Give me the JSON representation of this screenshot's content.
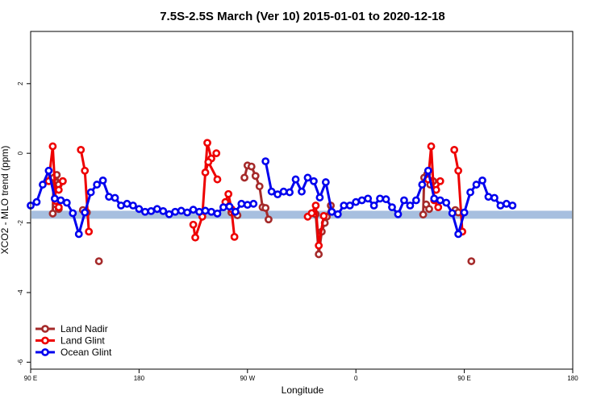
{
  "chart_data": {
    "type": "line",
    "title": "7.5S-2.5S March (Ver 10)   2015-01-01 to 2020-12-18",
    "xlabel": "Longitude",
    "ylabel": "XCO2 - MLO trend (ppm)",
    "xlim": [
      -90,
      180
    ],
    "ylim": [
      -6.2,
      3.5
    ],
    "x_ticks": [
      {
        "value": -90,
        "label": "90 E"
      },
      {
        "value": -36,
        "label": "180"
      },
      {
        "value": 18,
        "label": "90 W"
      },
      {
        "value": 72,
        "label": "0"
      },
      {
        "value": 126,
        "label": "90 E"
      },
      {
        "value": 180,
        "label": "180"
      }
    ],
    "y_ticks": [
      {
        "value": -6,
        "label": "-6"
      },
      {
        "value": -4,
        "label": "-4"
      },
      {
        "value": -2,
        "label": "-2"
      },
      {
        "value": 0,
        "label": "0"
      },
      {
        "value": 2,
        "label": "2"
      }
    ],
    "grid": false,
    "legend_position": "bottom-left",
    "reference_band": {
      "y0": -1.88,
      "y1": -1.65,
      "color": "#a7bfdf"
    },
    "series": [
      {
        "name": "Land Nadir",
        "color": "#a52a2a",
        "segments": [
          [
            [
              -79,
              -1.73
            ],
            [
              -78.5,
              -0.7
            ],
            [
              -77,
              -0.62
            ],
            [
              -76,
              -0.9
            ],
            [
              -74,
              -0.8
            ]
          ],
          [
            [
              -77.5,
              -1.47
            ],
            [
              -76,
              -1.6
            ]
          ],
          [
            [
              -64,
              -1.63
            ],
            [
              -62,
              -1.7
            ]
          ],
          [
            [
              -56,
              -3.1
            ]
          ],
          [
            [
              10,
              -1.7
            ],
            [
              13,
              -1.78
            ]
          ],
          [
            [
              16.5,
              -0.7
            ],
            [
              18,
              -0.35
            ],
            [
              20,
              -0.38
            ],
            [
              22,
              -0.65
            ],
            [
              24,
              -0.95
            ],
            [
              25.5,
              -1.55
            ],
            [
              27,
              -1.57
            ],
            [
              28.5,
              -1.9
            ]
          ],
          [
            [
              52,
              -1.75
            ],
            [
              53.5,
              -2.9
            ],
            [
              55,
              -2.25
            ],
            [
              56.5,
              -2.0
            ],
            [
              57.5,
              -1.82
            ],
            [
              59.5,
              -1.5
            ]
          ],
          [
            [
              105.5,
              -1.76
            ],
            [
              106,
              -0.7
            ],
            [
              107.5,
              -0.6
            ],
            [
              109,
              -0.9
            ],
            [
              110.5,
              -0.8
            ]
          ],
          [
            [
              107,
              -1.47
            ],
            [
              108.5,
              -1.6
            ]
          ],
          [
            [
              121.5,
              -1.63
            ],
            [
              123,
              -1.7
            ]
          ],
          [
            [
              129.5,
              -3.1
            ]
          ]
        ]
      },
      {
        "name": "Land Glint",
        "color": "#ee0000",
        "segments": [
          [
            [
              -81,
              -0.8
            ],
            [
              -79,
              0.2
            ],
            [
              -77.5,
              -1.37
            ],
            [
              -76,
              -1.55
            ]
          ],
          [
            [
              -76,
              -1.05
            ],
            [
              -74,
              -0.8
            ]
          ],
          [
            [
              -65,
              0.1
            ],
            [
              -63,
              -0.5
            ],
            [
              -61,
              -2.25
            ]
          ],
          [
            [
              -9,
              -2.05
            ],
            [
              -8,
              -2.42
            ],
            [
              -4.5,
              -1.82
            ],
            [
              -2,
              0.3
            ],
            [
              0,
              -0.15
            ],
            [
              2.5,
              0.0
            ]
          ],
          [
            [
              -3,
              -0.55
            ],
            [
              -1.5,
              -0.25
            ],
            [
              3,
              -0.75
            ]
          ],
          [
            [
              7,
              -1.4
            ],
            [
              8.5,
              -1.17
            ],
            [
              10,
              -1.6
            ],
            [
              11.5,
              -2.4
            ]
          ],
          [
            [
              48,
              -1.82
            ],
            [
              50,
              -1.72
            ],
            [
              52,
              -1.5
            ],
            [
              53.5,
              -2.65
            ],
            [
              56,
              -1.8
            ]
          ],
          [
            [
              108,
              -0.75
            ],
            [
              109.5,
              0.2
            ],
            [
              111,
              -1.35
            ],
            [
              113,
              -1.55
            ]
          ],
          [
            [
              112,
              -1.05
            ],
            [
              114,
              -0.8
            ]
          ],
          [
            [
              121,
              0.1
            ],
            [
              123,
              -0.5
            ],
            [
              125,
              -2.25
            ]
          ]
        ]
      },
      {
        "name": "Ocean Glint",
        "color": "#0000ee",
        "segments": [
          [
            [
              -90,
              -1.5
            ],
            [
              -87,
              -1.4
            ],
            [
              -84,
              -0.9
            ],
            [
              -81,
              -0.5
            ],
            [
              -78,
              -1.3
            ],
            [
              -75,
              -1.35
            ],
            [
              -72,
              -1.42
            ],
            [
              -69,
              -1.72
            ],
            [
              -66,
              -2.32
            ],
            [
              -63,
              -1.7
            ],
            [
              -60,
              -1.12
            ],
            [
              -57,
              -0.9
            ],
            [
              -54,
              -0.78
            ],
            [
              -51,
              -1.25
            ],
            [
              -48,
              -1.28
            ],
            [
              -45,
              -1.5
            ],
            [
              -42,
              -1.45
            ],
            [
              -39,
              -1.5
            ],
            [
              -36,
              -1.6
            ],
            [
              -33,
              -1.68
            ],
            [
              -30,
              -1.66
            ],
            [
              -27,
              -1.6
            ],
            [
              -24,
              -1.66
            ],
            [
              -21,
              -1.75
            ],
            [
              -18,
              -1.68
            ],
            [
              -15,
              -1.65
            ],
            [
              -12,
              -1.7
            ],
            [
              -9,
              -1.62
            ],
            [
              -6,
              -1.68
            ],
            [
              -3,
              -1.65
            ],
            [
              0,
              -1.68
            ],
            [
              3,
              -1.73
            ],
            [
              6,
              -1.55
            ],
            [
              9,
              -1.53
            ],
            [
              12,
              -1.68
            ],
            [
              15,
              -1.45
            ],
            [
              18,
              -1.48
            ],
            [
              21,
              -1.45
            ]
          ],
          [
            [
              27,
              -0.23
            ],
            [
              30,
              -1.1
            ],
            [
              33,
              -1.18
            ],
            [
              36,
              -1.1
            ],
            [
              39,
              -1.12
            ],
            [
              42,
              -0.75
            ],
            [
              45,
              -1.1
            ],
            [
              48,
              -0.7
            ],
            [
              51,
              -0.8
            ],
            [
              54,
              -1.27
            ],
            [
              57,
              -0.83
            ],
            [
              60,
              -1.68
            ],
            [
              63,
              -1.75
            ],
            [
              66,
              -1.5
            ],
            [
              69,
              -1.5
            ],
            [
              72,
              -1.4
            ],
            [
              75,
              -1.35
            ],
            [
              78,
              -1.3
            ],
            [
              81,
              -1.5
            ],
            [
              84,
              -1.3
            ],
            [
              87,
              -1.32
            ],
            [
              90,
              -1.55
            ],
            [
              93,
              -1.75
            ],
            [
              96,
              -1.35
            ],
            [
              99,
              -1.5
            ],
            [
              102,
              -1.35
            ],
            [
              105,
              -0.9
            ],
            [
              108,
              -0.5
            ],
            [
              111,
              -1.3
            ],
            [
              114,
              -1.35
            ],
            [
              117,
              -1.42
            ],
            [
              120,
              -1.72
            ],
            [
              123,
              -2.32
            ],
            [
              126,
              -1.7
            ],
            [
              129,
              -1.12
            ],
            [
              132,
              -0.9
            ],
            [
              135,
              -0.78
            ],
            [
              138,
              -1.25
            ],
            [
              141,
              -1.28
            ],
            [
              144,
              -1.5
            ],
            [
              147,
              -1.45
            ],
            [
              150,
              -1.5
            ]
          ]
        ]
      }
    ],
    "gaps": [],
    "legend": [
      {
        "name": "Land Nadir"
      },
      {
        "name": "Land Glint"
      },
      {
        "name": "Ocean Glint"
      }
    ]
  }
}
